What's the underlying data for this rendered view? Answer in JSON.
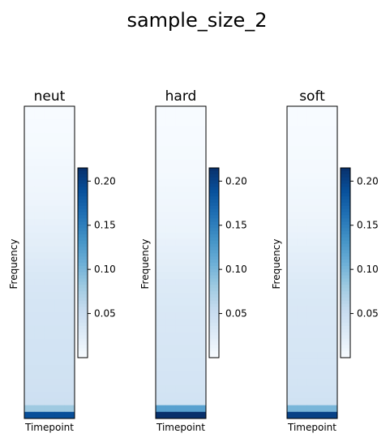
{
  "figure": {
    "title": "sample_size_2"
  },
  "colormap": {
    "name": "Blues",
    "stops": [
      "#f7fbff",
      "#deebf7",
      "#c6dbef",
      "#9ecae1",
      "#6baed6",
      "#4292c6",
      "#2171b5",
      "#08519c",
      "#08306b"
    ]
  },
  "chart_data": [
    {
      "type": "heatmap",
      "title": "neut",
      "xlabel": "Timepoint",
      "ylabel": "Frequency",
      "color_range": [
        0,
        0.215
      ],
      "colorbar_ticks": [
        0.05,
        0.1,
        0.15,
        0.2
      ],
      "colorbar_tick_labels": [
        "0.05",
        "0.10",
        "0.15",
        "0.20"
      ],
      "column_count": 5,
      "row_values_top_to_bottom": [
        0.0,
        0.0,
        0.001,
        0.001,
        0.002,
        0.002,
        0.003,
        0.004,
        0.005,
        0.006,
        0.007,
        0.008,
        0.009,
        0.01,
        0.011,
        0.013,
        0.014,
        0.016,
        0.018,
        0.02,
        0.022,
        0.024,
        0.026,
        0.028,
        0.03,
        0.032,
        0.034,
        0.035,
        0.036,
        0.037,
        0.037,
        0.038,
        0.038,
        0.039,
        0.039,
        0.04,
        0.04,
        0.041,
        0.041,
        0.042,
        0.042,
        0.043,
        0.044,
        0.045,
        0.046,
        0.08,
        0.19
      ]
    },
    {
      "type": "heatmap",
      "title": "hard",
      "xlabel": "Timepoint",
      "ylabel": "Frequency",
      "color_range": [
        0,
        0.215
      ],
      "colorbar_ticks": [
        0.05,
        0.1,
        0.15,
        0.2
      ],
      "colorbar_tick_labels": [
        "0.05",
        "0.10",
        "0.15",
        "0.20"
      ],
      "column_count": 5,
      "row_values_top_to_bottom": [
        0.0,
        0.0,
        0.0,
        0.001,
        0.001,
        0.001,
        0.002,
        0.002,
        0.003,
        0.003,
        0.004,
        0.005,
        0.006,
        0.007,
        0.008,
        0.009,
        0.01,
        0.011,
        0.012,
        0.014,
        0.016,
        0.018,
        0.02,
        0.022,
        0.024,
        0.026,
        0.028,
        0.029,
        0.03,
        0.031,
        0.032,
        0.033,
        0.034,
        0.034,
        0.035,
        0.035,
        0.036,
        0.036,
        0.037,
        0.037,
        0.038,
        0.038,
        0.039,
        0.04,
        0.041,
        0.12,
        0.215
      ]
    },
    {
      "type": "heatmap",
      "title": "soft",
      "xlabel": "Timepoint",
      "ylabel": "Frequency",
      "color_range": [
        0,
        0.215
      ],
      "colorbar_ticks": [
        0.05,
        0.1,
        0.15,
        0.2
      ],
      "colorbar_tick_labels": [
        "0.05",
        "0.10",
        "0.15",
        "0.20"
      ],
      "column_count": 5,
      "row_values_top_to_bottom": [
        0.0,
        0.0,
        0.0,
        0.001,
        0.001,
        0.001,
        0.002,
        0.002,
        0.003,
        0.003,
        0.004,
        0.005,
        0.006,
        0.007,
        0.008,
        0.009,
        0.01,
        0.012,
        0.013,
        0.015,
        0.017,
        0.019,
        0.021,
        0.023,
        0.025,
        0.027,
        0.029,
        0.03,
        0.031,
        0.032,
        0.033,
        0.034,
        0.034,
        0.035,
        0.035,
        0.036,
        0.036,
        0.037,
        0.037,
        0.038,
        0.038,
        0.039,
        0.04,
        0.041,
        0.042,
        0.1,
        0.2
      ]
    }
  ]
}
